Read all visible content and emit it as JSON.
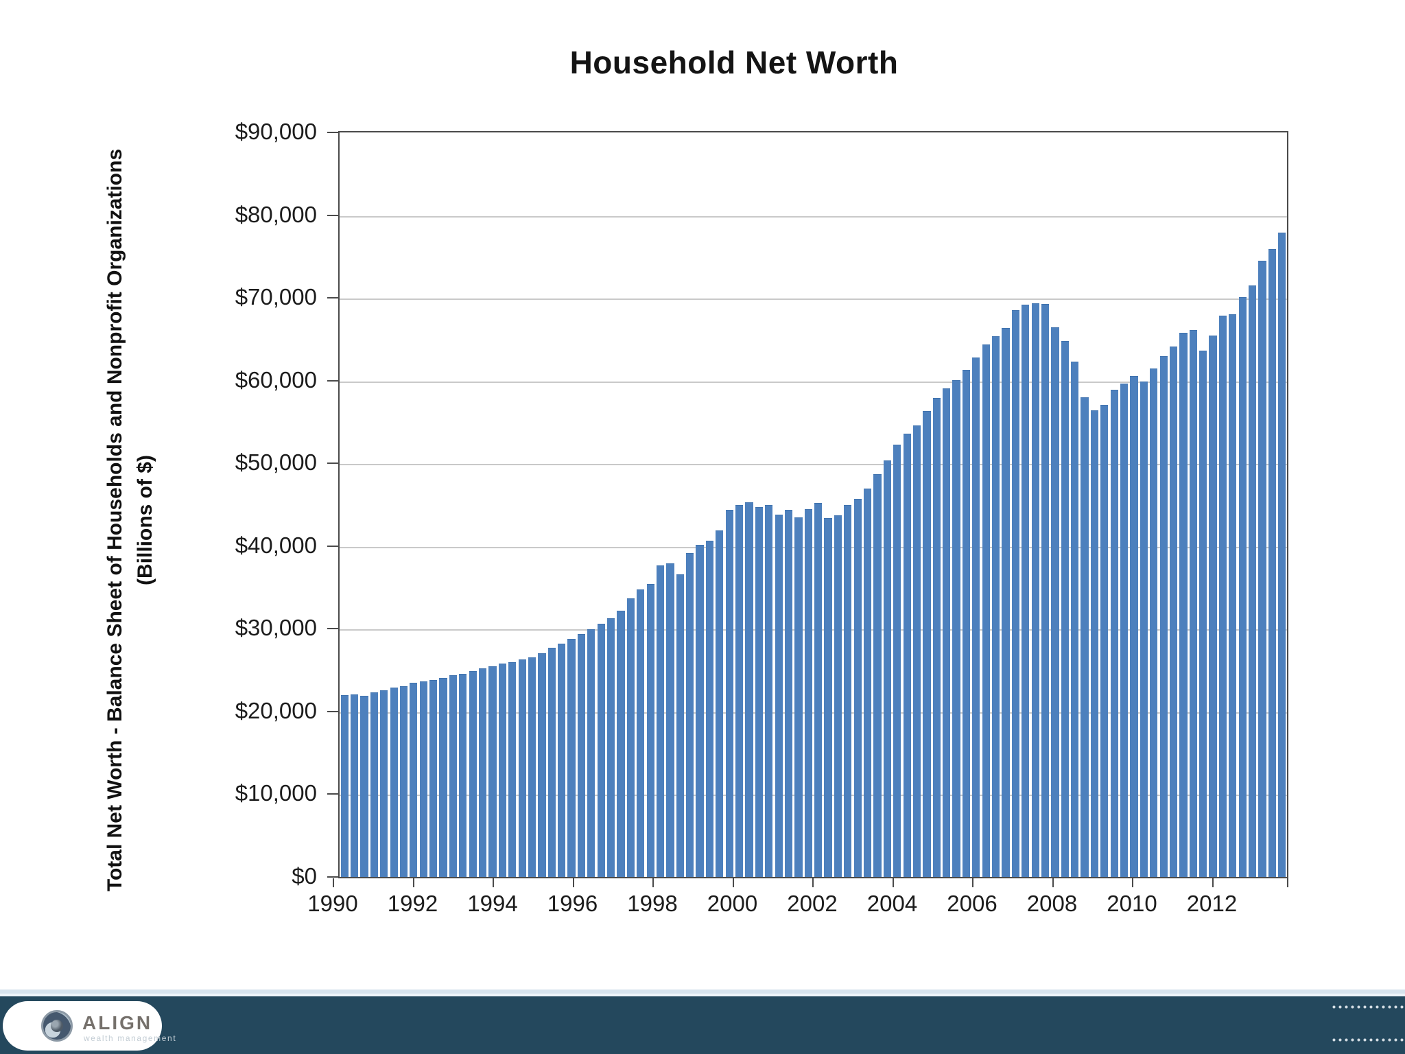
{
  "title": "Household Net Worth",
  "chart_data": {
    "type": "bar",
    "title": "Household Net Worth",
    "ylabel_line1": "Total Net Worth - Balance Sheet of Households and Nonprofit Organizations",
    "ylabel_line2": "(Billions of $)",
    "xlabel": "",
    "period": "quarterly bars, 1990 Q1 through 2013 Q4",
    "ylim": [
      0,
      90000
    ],
    "grid": true,
    "legend": "none",
    "bar_color": "#4d80bd",
    "x_tick_labels": [
      "1990",
      "1992",
      "1994",
      "1996",
      "1998",
      "2000",
      "2002",
      "2004",
      "2006",
      "2008",
      "2010",
      "2012"
    ],
    "y_tick_labels": [
      "$90,000",
      "$80,000",
      "$70,000",
      "$60,000",
      "$50,000",
      "$40,000",
      "$30,000",
      "$20,000",
      "$10,000",
      "$0"
    ],
    "values": [
      21900,
      22000,
      21800,
      22200,
      22500,
      22800,
      23000,
      23400,
      23600,
      23700,
      24000,
      24300,
      24500,
      24800,
      25100,
      25400,
      25700,
      25900,
      26200,
      26500,
      27000,
      27600,
      28100,
      28700,
      29300,
      29900,
      30500,
      31200,
      32100,
      33600,
      34700,
      35300,
      37600,
      37800,
      36500,
      39100,
      40100,
      40600,
      41800,
      44300,
      44900,
      45200,
      44600,
      44900,
      43700,
      44300,
      43400,
      44400,
      45100,
      43300,
      43600,
      44900,
      45600,
      46900,
      48600,
      50300,
      52200,
      53500,
      54500,
      56200,
      57800,
      59000,
      60000,
      61200,
      62700,
      64300,
      65300,
      66300,
      68400,
      69100,
      69300,
      69200,
      66400,
      64700,
      62200,
      57900,
      56300,
      57000,
      58800,
      59600,
      60500,
      59800,
      61400,
      62900,
      64000,
      65700,
      66000,
      63500,
      65400,
      67800,
      67900,
      70000,
      71400,
      74400,
      75800,
      77800
    ]
  },
  "footer": {
    "logo_text": "ALIGN",
    "logo_tagline": "wealth management",
    "bar_color": "#24485d"
  }
}
